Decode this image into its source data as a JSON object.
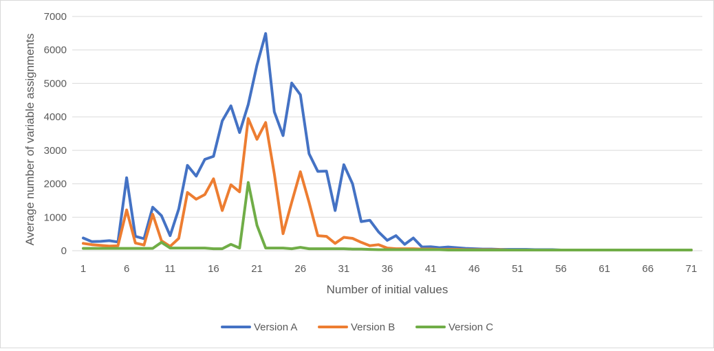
{
  "chart_data": {
    "type": "line",
    "title": "",
    "xlabel": "Number of initial values",
    "ylabel": "Average number of variable assignments",
    "x": [
      1,
      2,
      3,
      4,
      5,
      6,
      7,
      8,
      9,
      10,
      11,
      12,
      13,
      14,
      15,
      16,
      17,
      18,
      19,
      20,
      21,
      22,
      23,
      24,
      25,
      26,
      27,
      28,
      29,
      30,
      31,
      32,
      33,
      34,
      35,
      36,
      37,
      38,
      39,
      40,
      41,
      42,
      43,
      44,
      45,
      46,
      47,
      48,
      49,
      50,
      51,
      52,
      53,
      54,
      55,
      56,
      57,
      58,
      59,
      60,
      61,
      62,
      63,
      64,
      65,
      66,
      67,
      68,
      69,
      70,
      71
    ],
    "x_tick_labels": [
      "1",
      "6",
      "11",
      "16",
      "21",
      "26",
      "31",
      "36",
      "41",
      "46",
      "51",
      "56",
      "61",
      "66",
      "71"
    ],
    "x_tick_values": [
      1,
      6,
      11,
      16,
      21,
      26,
      31,
      36,
      41,
      46,
      51,
      56,
      61,
      66,
      71
    ],
    "ylim": [
      0,
      7000
    ],
    "y_ticks": [
      0,
      1000,
      2000,
      3000,
      4000,
      5000,
      6000,
      7000
    ],
    "y_tick_labels": [
      "0",
      "1000",
      "2000",
      "3000",
      "4000",
      "5000",
      "6000",
      "7000"
    ],
    "grid": "horizontal",
    "legend_position": "bottom",
    "series": [
      {
        "name": "Version A",
        "color": "#4472c4",
        "values": [
          380,
          270,
          280,
          300,
          260,
          2180,
          430,
          360,
          1300,
          1050,
          450,
          1250,
          2550,
          2230,
          2730,
          2820,
          3880,
          4330,
          3530,
          4370,
          5550,
          6490,
          4150,
          3440,
          5010,
          4660,
          2900,
          2370,
          2380,
          1200,
          2570,
          2000,
          870,
          910,
          560,
          310,
          450,
          190,
          380,
          110,
          120,
          90,
          110,
          90,
          70,
          60,
          50,
          50,
          40,
          40,
          40,
          40,
          30,
          30,
          30,
          20,
          20,
          20,
          20,
          20,
          20,
          20,
          20,
          20,
          20,
          20,
          20,
          20,
          20,
          20,
          20
        ]
      },
      {
        "name": "Version B",
        "color": "#ed7d31",
        "values": [
          220,
          180,
          160,
          140,
          150,
          1220,
          230,
          170,
          1090,
          300,
          130,
          370,
          1740,
          1540,
          1680,
          2150,
          1200,
          1970,
          1760,
          3950,
          3330,
          3830,
          2300,
          510,
          1450,
          2360,
          1450,
          450,
          430,
          220,
          400,
          370,
          250,
          150,
          180,
          80,
          60,
          60,
          60,
          50,
          50,
          40,
          40,
          40,
          30,
          30,
          30,
          30,
          30,
          20,
          20,
          20,
          20,
          20,
          20,
          20,
          20,
          20,
          20,
          20,
          20,
          20,
          20,
          20,
          20,
          20,
          20,
          20,
          20,
          20,
          20
        ]
      },
      {
        "name": "Version C",
        "color": "#70ad47",
        "values": [
          70,
          70,
          70,
          70,
          70,
          70,
          70,
          70,
          70,
          250,
          80,
          80,
          80,
          80,
          80,
          60,
          60,
          190,
          80,
          2040,
          760,
          80,
          80,
          80,
          60,
          100,
          60,
          60,
          60,
          60,
          60,
          50,
          50,
          40,
          30,
          30,
          30,
          30,
          30,
          30,
          30,
          30,
          20,
          20,
          20,
          20,
          20,
          20,
          20,
          20,
          20,
          20,
          20,
          20,
          20,
          20,
          20,
          20,
          20,
          20,
          20,
          20,
          20,
          20,
          20,
          20,
          20,
          20,
          20,
          20,
          20
        ]
      }
    ]
  }
}
